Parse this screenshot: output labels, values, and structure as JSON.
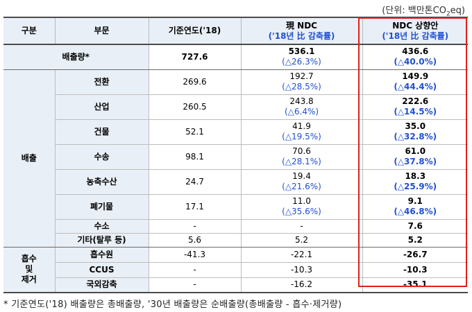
{
  "unit": {
    "prefix": "(단위: 백만톤CO",
    "sub": "2",
    "suffix": "eq)"
  },
  "header": {
    "col1": "구분",
    "col2": "부문",
    "col3": "기준연도('18)",
    "col4_line1": "現 NDC",
    "col4_line2": "('18년 比 감축률)",
    "col5_line1": "NDC 상향안",
    "col5_line2": "('18년 比 감축률)"
  },
  "total": {
    "label": "배출량*",
    "base": "727.6",
    "cur": "536.1",
    "cur_pct": "(△26.3%)",
    "new": "436.6",
    "new_pct": "(△40.0%)"
  },
  "emission_group": "배출",
  "emission_rows": [
    {
      "name": "전환",
      "base": "269.6",
      "cur": "192.7",
      "cur_pct": "(△28.5%)",
      "new": "149.9",
      "new_pct": "(△44.4%)"
    },
    {
      "name": "산업",
      "base": "260.5",
      "cur": "243.8",
      "cur_pct": "(△6.4%)",
      "new": "222.6",
      "new_pct": "(△14.5%)"
    },
    {
      "name": "건물",
      "base": "52.1",
      "cur": "41.9",
      "cur_pct": "(△19.5%)",
      "new": "35.0",
      "new_pct": "(△32.8%)"
    },
    {
      "name": "수송",
      "base": "98.1",
      "cur": "70.6",
      "cur_pct": "(△28.1%)",
      "new": "61.0",
      "new_pct": "(△37.8%)"
    },
    {
      "name": "농축수산",
      "base": "24.7",
      "cur": "19.4",
      "cur_pct": "(△21.6%)",
      "new": "18.3",
      "new_pct": "(△25.9%)"
    },
    {
      "name": "폐기물",
      "base": "17.1",
      "cur": "11.0",
      "cur_pct": "(△35.6%)",
      "new": "9.1",
      "new_pct": "(△46.8%)"
    }
  ],
  "hydrogen": {
    "name": "수소",
    "base": "-",
    "cur": "-",
    "new": "7.6"
  },
  "other": {
    "name": "기타(탈루 등)",
    "base": "5.6",
    "cur": "5.2",
    "new": "5.2"
  },
  "absorption_group": [
    "흡수",
    "및",
    "제거"
  ],
  "absorption_rows": [
    {
      "name": "흡수원",
      "base": "-41.3",
      "cur": "-22.1",
      "new": "-26.7"
    },
    {
      "name": "CCUS",
      "base": "-",
      "cur": "-10.3",
      "new": "-10.3"
    },
    {
      "name": "국외감축",
      "base": "-",
      "cur": "-16.2",
      "new": "-35.1"
    }
  ],
  "footnote": "* 기준연도('18) 배출량은 총배출량, '30년 배출량은 순배출량(총배출량 - 흡수·제거량)"
}
